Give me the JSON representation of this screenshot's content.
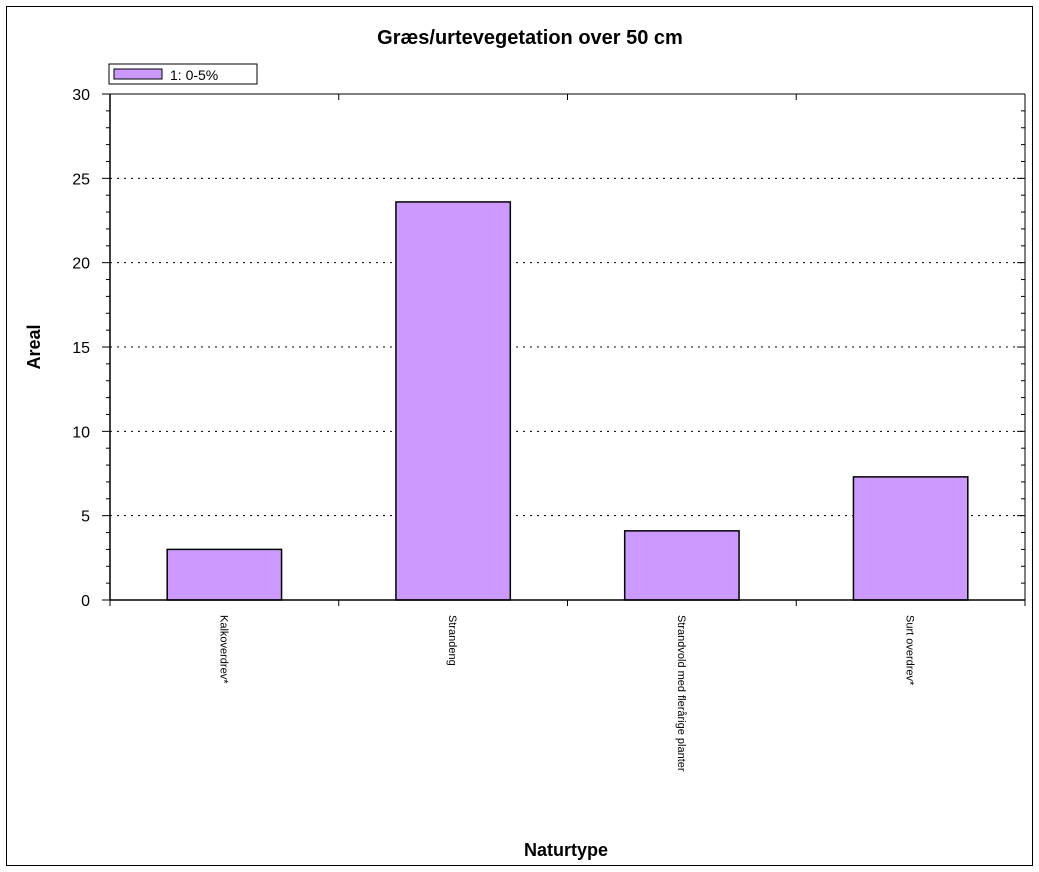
{
  "chart_data": {
    "type": "bar",
    "title": "Græs/urtevegetation over 50 cm",
    "xlabel": "Naturtype",
    "ylabel": "Areal",
    "categories": [
      "Kalkoverdrev*",
      "Strandeng",
      "Strandvold med flerårige planter",
      "Surt overdrev*"
    ],
    "series": [
      {
        "name": "1: 0-5%",
        "values": [
          3.0,
          23.6,
          4.1,
          7.3
        ],
        "color": "#cc99ff"
      }
    ],
    "ylim": [
      0,
      30
    ],
    "yticks": [
      0,
      5,
      10,
      15,
      20,
      25,
      30
    ],
    "grid": true,
    "legend_position": "top-left"
  }
}
